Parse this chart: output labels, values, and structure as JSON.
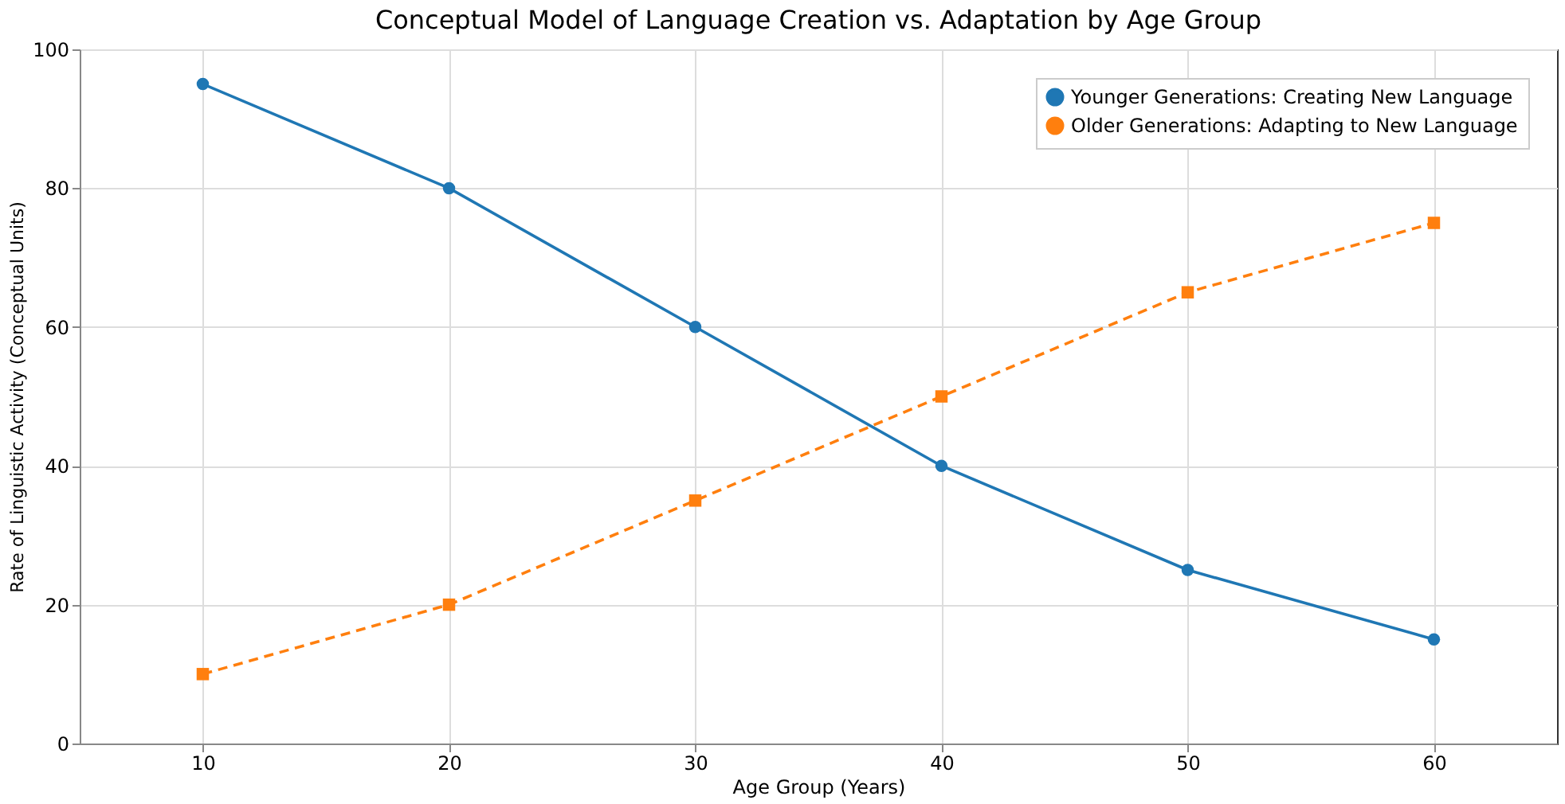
{
  "chart_data": {
    "type": "line",
    "title": "Conceptual Model of Language Creation vs. Adaptation by Age Group",
    "xlabel": "Age Group (Years)",
    "ylabel": "Rate of Linguistic Activity (Conceptual Units)",
    "x": [
      10,
      20,
      30,
      40,
      50,
      60
    ],
    "series": [
      {
        "name": "Younger Generations: Creating New Language",
        "color": "#1f77b4",
        "values": [
          95,
          80,
          60,
          40,
          25,
          15
        ],
        "marker": "circle",
        "line_style": "solid"
      },
      {
        "name": "Older Generations: Adapting to New Language",
        "color": "#ff7f0e",
        "values": [
          10,
          20,
          35,
          50,
          65,
          75
        ],
        "marker": "square",
        "line_style": "dashed"
      }
    ],
    "xlim": [
      5,
      65
    ],
    "xticks": [
      10,
      20,
      30,
      40,
      50,
      60
    ],
    "ylim": [
      0,
      100
    ],
    "yticks": [
      0,
      20,
      40,
      60,
      80,
      100
    ],
    "grid": true,
    "legend": "top right"
  }
}
